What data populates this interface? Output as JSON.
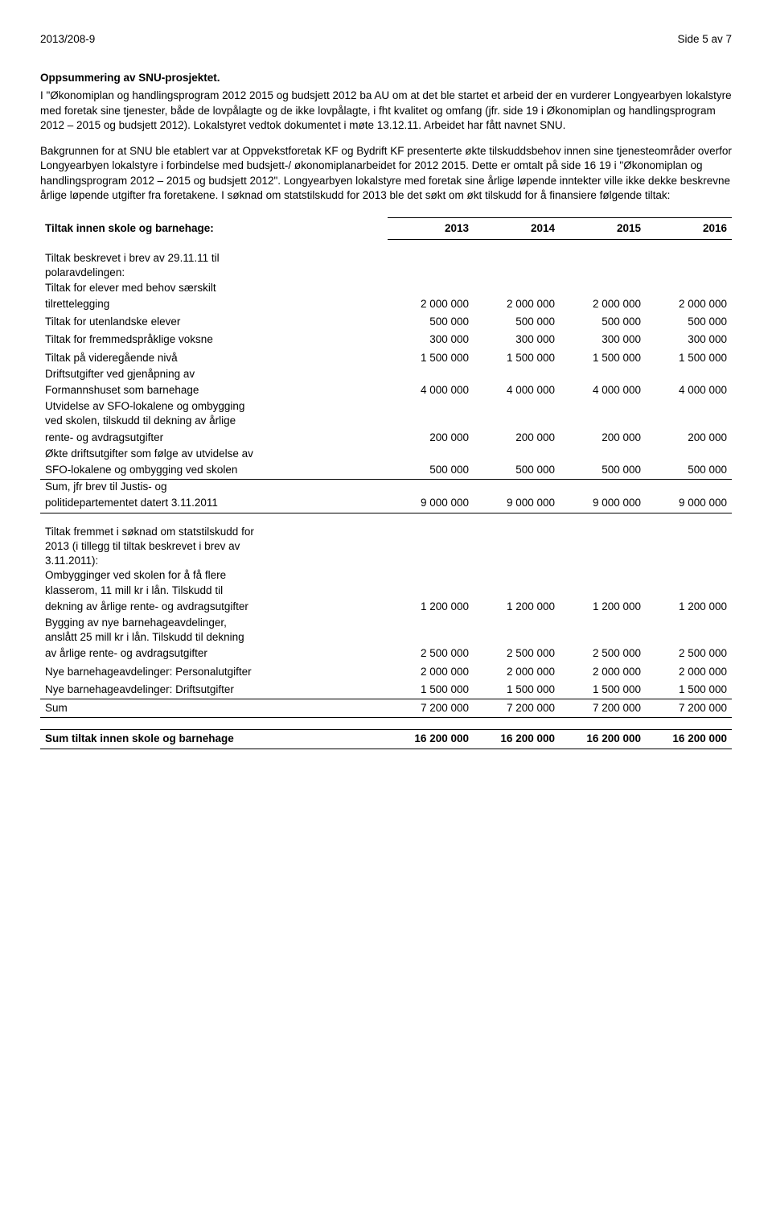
{
  "header": {
    "left": "2013/208-9",
    "right": "Side 5 av 7"
  },
  "heading": "Oppsummering av SNU-prosjektet.",
  "para1": "I \"Økonomiplan og handlingsprogram 2012 2015 og budsjett 2012 ba AU om at det ble startet et arbeid der en vurderer Longyearbyen lokalstyre med foretak sine tjenester, både de lovpålagte og de ikke lovpålagte, i fht kvalitet og omfang (jfr. side 19 i Økonomiplan og handlingsprogram 2012 – 2015 og budsjett 2012). Lokalstyret vedtok dokumentet i møte 13.12.11. Arbeidet har fått navnet SNU.",
  "para2": "Bakgrunnen for at SNU ble etablert var at Oppvekstforetak KF og Bydrift KF presenterte økte tilskuddsbehov innen sine tjenesteområder overfor Longyearbyen lokalstyre i forbindelse med budsjett-/ økonomiplanarbeidet for 2012 2015. Dette er omtalt på side 16 19 i \"Økonomiplan og handlingsprogram 2012 – 2015 og budsjett 2012\". Longyearbyen lokalstyre med foretak sine årlige løpende inntekter ville ikke dekke beskrevne årlige løpende utgifter fra foretakene. I søknad om statstilskudd for 2013 ble det søkt om økt tilskudd for å finansiere følgende tiltak:",
  "table1": {
    "heading": "Tiltak innen skole og barnehage:",
    "years": [
      "2013",
      "2014",
      "2015",
      "2016"
    ],
    "intro_lines": [
      "Tiltak beskrevet i brev av 29.11.11 til",
      "polaravdelingen:"
    ],
    "rows": [
      {
        "lines": [
          "Tiltak for elever med behov særskilt",
          "tilrettelegging"
        ],
        "values": [
          "2 000 000",
          "2 000 000",
          "2 000 000",
          "2 000 000"
        ]
      },
      {
        "lines": [
          "Tiltak for utenlandske elever"
        ],
        "values": [
          "500 000",
          "500 000",
          "500 000",
          "500 000"
        ]
      },
      {
        "lines": [
          "Tiltak for fremmedspråklige voksne"
        ],
        "values": [
          "300 000",
          "300 000",
          "300 000",
          "300 000"
        ]
      },
      {
        "lines": [
          "Tiltak på videregående nivå"
        ],
        "values": [
          "1 500 000",
          "1 500 000",
          "1 500 000",
          "1 500 000"
        ]
      },
      {
        "lines": [
          "Driftsutgifter ved gjenåpning av",
          "Formannshuset som barnehage"
        ],
        "values": [
          "4 000 000",
          "4 000 000",
          "4 000 000",
          "4 000 000"
        ]
      },
      {
        "lines": [
          "Utvidelse av SFO-lokalene og ombygging",
          "ved skolen, tilskudd til dekning av årlige",
          "rente- og avdragsutgifter"
        ],
        "values": [
          "200 000",
          "200 000",
          "200 000",
          "200 000"
        ]
      },
      {
        "lines": [
          "Økte driftsutgifter som følge av utvidelse av",
          "SFO-lokalene og ombygging ved skolen"
        ],
        "values": [
          "500 000",
          "500 000",
          "500 000",
          "500 000"
        ]
      }
    ],
    "sum_lines": [
      "Sum, jfr brev til Justis- og",
      "politidepartementet datert 3.11.2011"
    ],
    "sum_values": [
      "9 000 000",
      "9 000 000",
      "9 000 000",
      "9 000 000"
    ]
  },
  "table2": {
    "intro_lines": [
      "Tiltak fremmet i søknad om statstilskudd for",
      "2013 (i tillegg til tiltak beskrevet i brev av",
      "3.11.2011):"
    ],
    "rows": [
      {
        "lines": [
          "Ombygginger ved skolen for å få flere",
          "klasserom, 11 mill kr i lån. Tilskudd til",
          "dekning av årlige rente- og avdragsutgifter"
        ],
        "values": [
          "1 200 000",
          "1 200 000",
          "1 200 000",
          "1 200 000"
        ]
      },
      {
        "lines": [
          "Bygging av nye barnehageavdelinger,",
          "anslått 25 mill kr i lån. Tilskudd til dekning",
          "av årlige rente- og avdragsutgifter"
        ],
        "values": [
          "2 500 000",
          "2 500 000",
          "2 500 000",
          "2 500 000"
        ]
      },
      {
        "lines": [
          "Nye barnehageavdelinger: Personalutgifter"
        ],
        "values": [
          "2 000 000",
          "2 000 000",
          "2 000 000",
          "2 000 000"
        ]
      },
      {
        "lines": [
          "Nye barnehageavdelinger: Driftsutgifter"
        ],
        "values": [
          "1 500 000",
          "1 500 000",
          "1 500 000",
          "1 500 000"
        ]
      }
    ],
    "sum_label": "Sum",
    "sum_values": [
      "7 200 000",
      "7 200 000",
      "7 200 000",
      "7 200 000"
    ]
  },
  "grand_total": {
    "label": "Sum tiltak innen skole og barnehage",
    "values": [
      "16 200 000",
      "16 200 000",
      "16 200 000",
      "16 200 000"
    ]
  }
}
